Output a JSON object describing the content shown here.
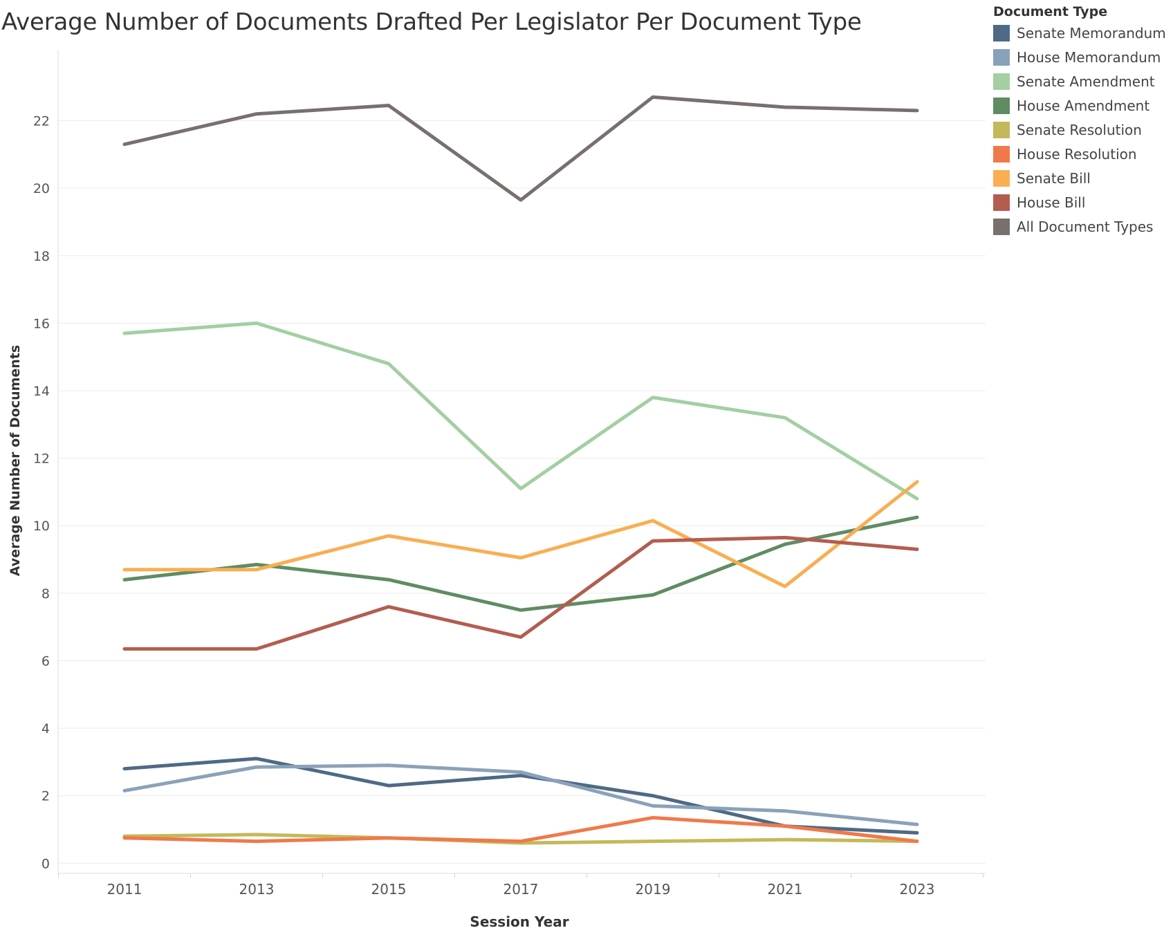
{
  "chart_data": {
    "type": "line",
    "title": "Average Number of Documents Drafted Per Legislator Per Document Type",
    "xlabel": "Session Year",
    "ylabel": "Average Number of Documents",
    "ylim": [
      -0.3,
      24.1
    ],
    "yticks": [
      0,
      2,
      4,
      6,
      8,
      10,
      12,
      14,
      16,
      18,
      20,
      22
    ],
    "grid": true,
    "legend_title": "Document Type",
    "legend_position": "right",
    "x": [
      "2011",
      "2013",
      "2015",
      "2017",
      "2019",
      "2021",
      "2023"
    ],
    "series": [
      {
        "name": "Senate Memorandum",
        "color": "#4e6a85",
        "values": [
          2.8,
          3.1,
          2.3,
          2.6,
          2.0,
          1.1,
          0.9
        ]
      },
      {
        "name": "House Memorandum",
        "color": "#8aa2b9",
        "values": [
          2.15,
          2.85,
          2.9,
          2.7,
          1.7,
          1.55,
          1.15
        ]
      },
      {
        "name": "Senate Amendment",
        "color": "#a3cfa3",
        "values": [
          15.7,
          16.0,
          14.8,
          11.1,
          13.8,
          13.2,
          10.8
        ]
      },
      {
        "name": "House Amendment",
        "color": "#5f8c63",
        "values": [
          8.4,
          8.85,
          8.4,
          7.5,
          7.95,
          9.45,
          10.25
        ]
      },
      {
        "name": "Senate Resolution",
        "color": "#c3b95a",
        "values": [
          0.8,
          0.85,
          0.75,
          0.6,
          0.65,
          0.7,
          0.65
        ]
      },
      {
        "name": "House Resolution",
        "color": "#f0794a",
        "values": [
          0.75,
          0.65,
          0.75,
          0.65,
          1.35,
          1.1,
          0.65
        ]
      },
      {
        "name": "Senate Bill",
        "color": "#f9ae52",
        "values": [
          8.7,
          8.7,
          9.7,
          9.05,
          10.15,
          8.2,
          11.3
        ]
      },
      {
        "name": "House Bill",
        "color": "#b35d4f",
        "values": [
          6.35,
          6.35,
          7.6,
          6.7,
          9.55,
          9.65,
          9.3
        ]
      },
      {
        "name": "All Document Types",
        "color": "#77706d",
        "values": [
          21.3,
          22.2,
          22.45,
          19.65,
          22.7,
          22.4,
          22.3
        ]
      }
    ]
  }
}
